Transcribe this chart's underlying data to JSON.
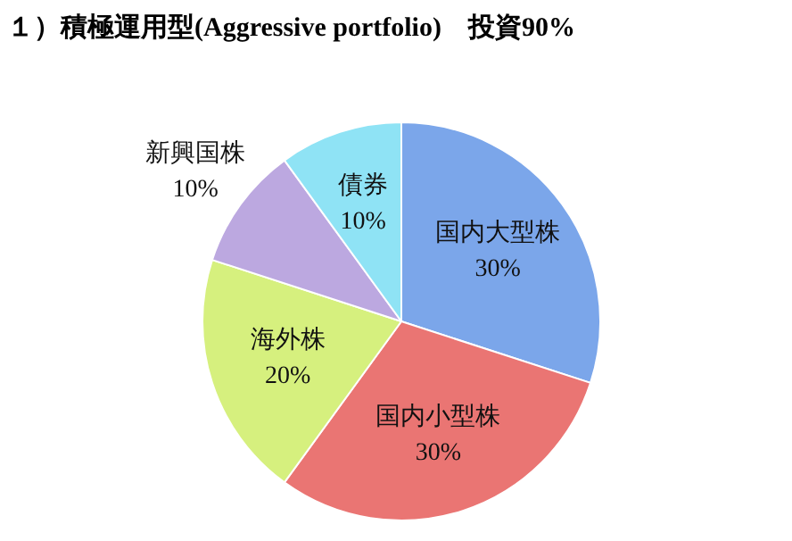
{
  "chart_data": {
    "type": "pie",
    "title": "１）積極運用型(Aggressive portfolio)　投資90%",
    "categories": [
      "国内大型株",
      "国内小型株",
      "海外株",
      "新興国株",
      "債券"
    ],
    "values": [
      30,
      30,
      20,
      10,
      10
    ],
    "colors": [
      "#7ba6ea",
      "#ea7573",
      "#d6f07e",
      "#bca8e0",
      "#8fe3f5"
    ],
    "value_labels": [
      "30%",
      "30%",
      "20%",
      "10%",
      "10%"
    ],
    "legend": false
  }
}
